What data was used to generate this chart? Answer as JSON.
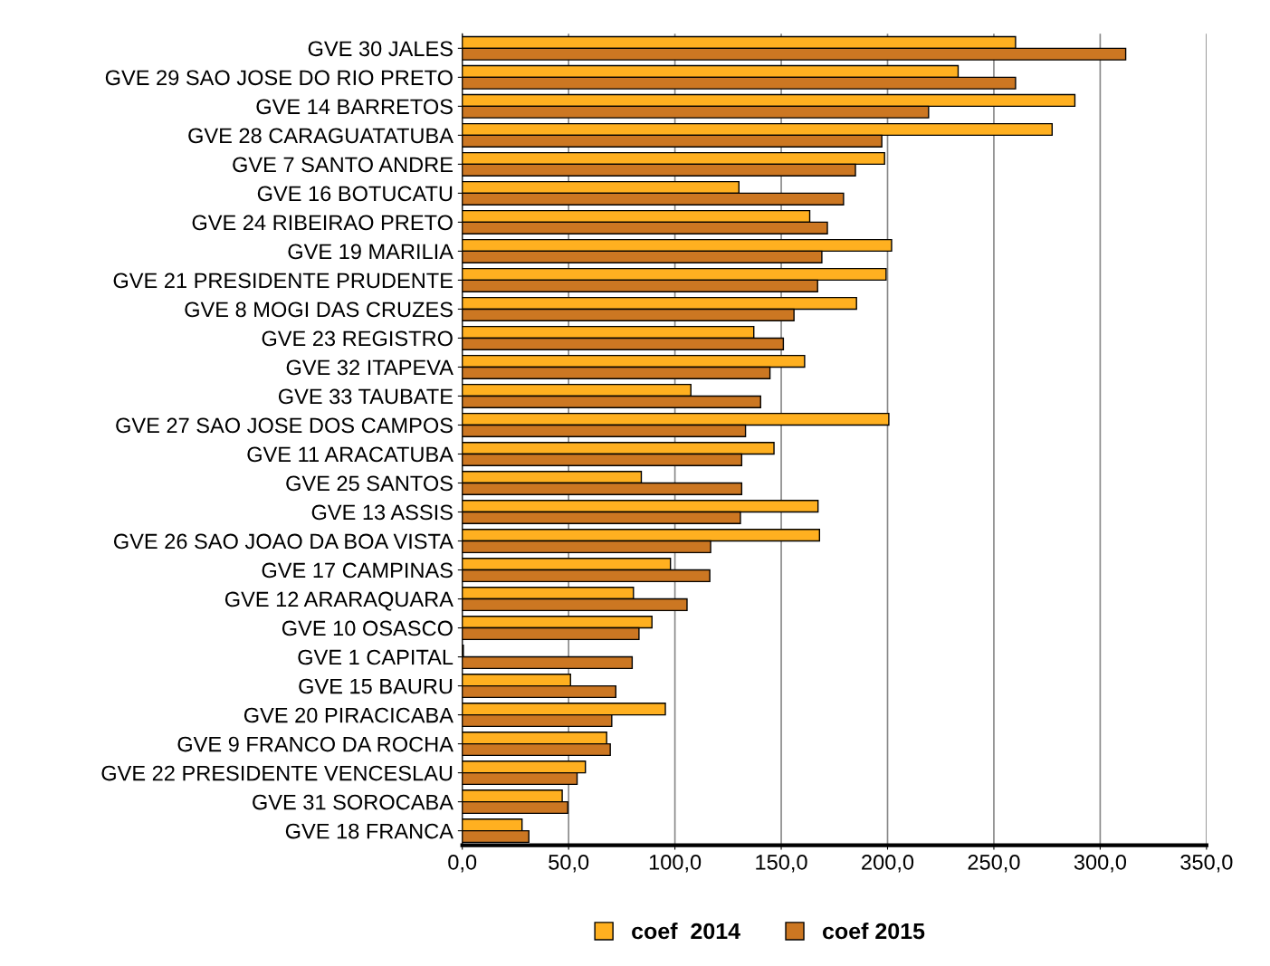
{
  "chart_data": {
    "type": "bar",
    "orientation": "horizontal",
    "categories": [
      "GVE 30 JALES",
      "GVE 29 SAO JOSE DO RIO PRETO",
      "GVE 14 BARRETOS",
      "GVE 28 CARAGUATATUBA",
      "GVE 7 SANTO ANDRE",
      "GVE 16 BOTUCATU",
      "GVE 24 RIBEIRAO PRETO",
      "GVE 19 MARILIA",
      "GVE 21 PRESIDENTE PRUDENTE",
      "GVE 8 MOGI DAS CRUZES",
      "GVE 23 REGISTRO",
      "GVE 32 ITAPEVA",
      "GVE 33 TAUBATE",
      "GVE 27 SAO JOSE DOS CAMPOS",
      "GVE 11 ARACATUBA",
      "GVE 25 SANTOS",
      "GVE 13 ASSIS",
      "GVE 26 SAO JOAO DA BOA VISTA",
      "GVE 17 CAMPINAS",
      "GVE 12 ARARAQUARA",
      "GVE 10 OSASCO",
      "GVE 1 CAPITAL",
      "GVE 15 BAURU",
      "GVE 20 PIRACICABA",
      "GVE 9 FRANCO DA ROCHA",
      "GVE 22 PRESIDENTE VENCESLAU",
      "GVE 31 SOROCABA",
      "GVE 18 FRANCA"
    ],
    "series": [
      {
        "name": "coef  2014",
        "color": "#ffb020",
        "values": [
          260.2,
          233.2,
          288.1,
          277.4,
          198.6,
          130.1,
          163.4,
          201.9,
          199.3,
          185.4,
          137.1,
          161.0,
          107.5,
          200.6,
          146.6,
          84.2,
          167.3,
          168.0,
          97.9,
          80.5,
          89.2,
          0.5,
          50.9,
          95.5,
          67.9,
          57.9,
          47.0,
          28.1
        ]
      },
      {
        "name": "coef 2015",
        "color": "#cc7722",
        "values": [
          312.0,
          260.2,
          219.3,
          197.3,
          184.9,
          179.3,
          171.7,
          169.1,
          167.1,
          156.0,
          151.0,
          144.7,
          140.3,
          133.2,
          131.4,
          131.4,
          130.8,
          116.8,
          116.4,
          105.7,
          83.1,
          79.9,
          72.2,
          70.3,
          69.6,
          54.0,
          49.6,
          31.3
        ]
      }
    ],
    "xlim": [
      0,
      350
    ],
    "xticks": [
      {
        "value": 0,
        "label": "0,0"
      },
      {
        "value": 50,
        "label": "50,0"
      },
      {
        "value": 100,
        "label": "100,0"
      },
      {
        "value": 150,
        "label": "150,0"
      },
      {
        "value": 200,
        "label": "200,0"
      },
      {
        "value": 250,
        "label": "250,0"
      },
      {
        "value": 300,
        "label": "300,0"
      },
      {
        "value": 350,
        "label": "350,0"
      }
    ],
    "grid": "x",
    "legend": "bottom"
  }
}
